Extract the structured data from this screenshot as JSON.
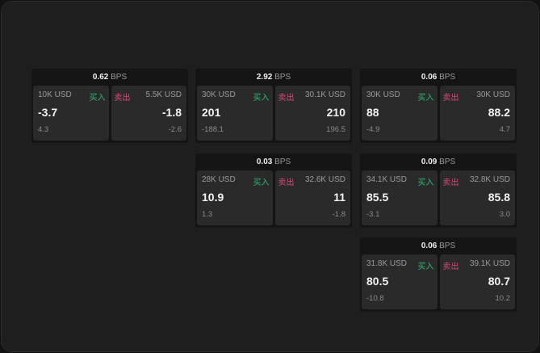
{
  "bps_unit": "BPS",
  "buy_label": "买入",
  "sell_label": "卖出",
  "colors": {
    "buy": "#2fb872",
    "sell": "#e0457a"
  },
  "cards": [
    {
      "spread": "0.62",
      "buy": {
        "qty": "10K USD",
        "price": "-3.7",
        "change": "4.3"
      },
      "sell": {
        "qty": "5.5K USD",
        "price": "-1.8",
        "change": "-2.6"
      }
    },
    {
      "spread": "2.92",
      "buy": {
        "qty": "30K USD",
        "price": "201",
        "change": "-188.1"
      },
      "sell": {
        "qty": "30.1K USD",
        "price": "210",
        "change": "196.5"
      }
    },
    {
      "spread": "0.06",
      "buy": {
        "qty": "30K USD",
        "price": "88",
        "change": "-4.9"
      },
      "sell": {
        "qty": "30K USD",
        "price": "88.2",
        "change": "4.7"
      }
    },
    {
      "spread": "0.03",
      "buy": {
        "qty": "28K USD",
        "price": "10.9",
        "change": "1.3"
      },
      "sell": {
        "qty": "32.6K USD",
        "price": "11",
        "change": "-1.8"
      }
    },
    {
      "spread": "0.09",
      "buy": {
        "qty": "34.1K USD",
        "price": "85.5",
        "change": "-3.1"
      },
      "sell": {
        "qty": "32.8K USD",
        "price": "85.8",
        "change": "3.0"
      }
    },
    {
      "spread": "0.06",
      "buy": {
        "qty": "31.8K USD",
        "price": "80.5",
        "change": "-10.8"
      },
      "sell": {
        "qty": "39.1K USD",
        "price": "80.7",
        "change": "10.2"
      }
    }
  ]
}
